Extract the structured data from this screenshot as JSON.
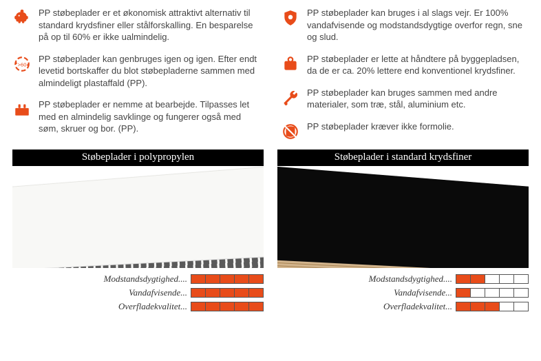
{
  "colors": {
    "accent": "#e84c1a",
    "text": "#3a3a3a",
    "barTitleBg": "#000000",
    "barTitleFg": "#ffffff",
    "ratingFilled": "#e84c1a",
    "ratingEmpty": "#ffffff",
    "ratingBorder": "#555555"
  },
  "features": {
    "left": [
      {
        "icon": "piggy",
        "text": "PP støbeplader er et økonomisk attraktivt alternativ til standard krydsfiner eller stålforskalling. En besparelse på op til 60% er ikke ualmindelig."
      },
      {
        "icon": "recycle",
        "text": "PP støbeplader kan genbruges igen og igen. Efter endt levetid bortskaffer du blot støbepladerne sammen med almindeligt plastaffald (PP)."
      },
      {
        "icon": "tools",
        "text": "PP støbeplader er nemme at bearbejde. Tilpasses let med en almindelig savklinge og fungerer også med søm, skruer og bor. (PP)."
      }
    ],
    "right": [
      {
        "icon": "shield",
        "text": "PP støbeplader kan bruges i al slags vejr. Er 100% vandafvisende og modstandsdygtige overfor regn, sne og slud."
      },
      {
        "icon": "weight",
        "text": "PP støbeplader er lette at håndtere på byggepladsen, da de er ca. 20% lettere end konventionel krydsfiner."
      },
      {
        "icon": "wrench",
        "text": "PP støbeplader kan bruges sammen med andre materialer, som træ, stål, aluminium etc."
      },
      {
        "icon": "drum",
        "text": "PP støbeplader kræver ikke formolie."
      }
    ]
  },
  "comparison": {
    "left": {
      "title": "Støbeplader i polypropylen",
      "ratings": [
        {
          "label": "Modstandsdygtighed....",
          "value": 5,
          "max": 5
        },
        {
          "label": "Vandafvisende...",
          "value": 5,
          "max": 5
        },
        {
          "label": "Overfladekvalitet...",
          "value": 5,
          "max": 5
        }
      ]
    },
    "right": {
      "title": "Støbeplader i standard krydsfiner",
      "ratings": [
        {
          "label": "Modstandsdygtighed....",
          "value": 2,
          "max": 5
        },
        {
          "label": "Vandafvisende...",
          "value": 1,
          "max": 5
        },
        {
          "label": "Overfladekvalitet...",
          "value": 3,
          "max": 5
        }
      ]
    }
  }
}
